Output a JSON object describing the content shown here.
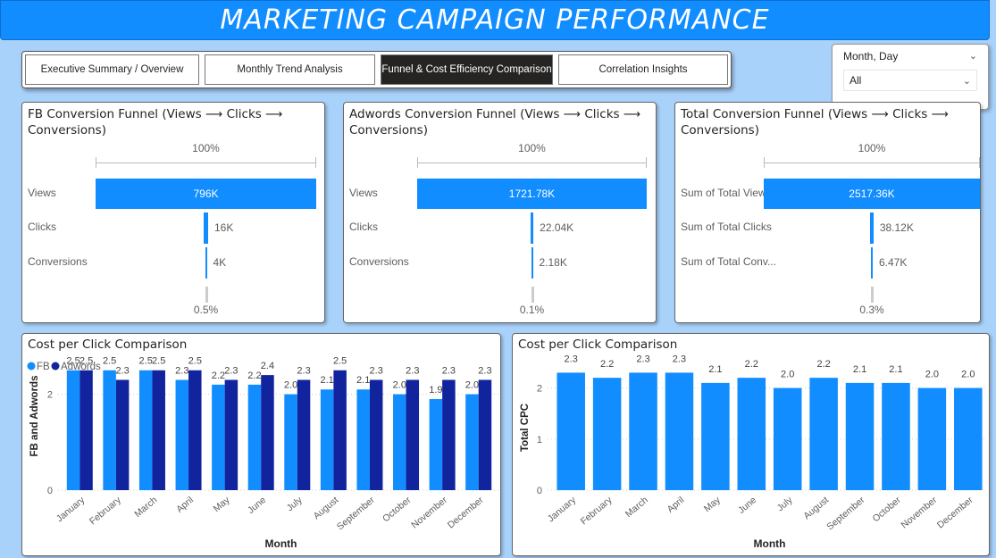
{
  "header": {
    "title": "MARKETING CAMPAIGN PERFORMANCE"
  },
  "tabs": [
    {
      "label": "Executive Summary / Overview",
      "active": false
    },
    {
      "label": "Monthly Trend Analysis",
      "active": false
    },
    {
      "label": "Funnel & Cost Efficiency Comparison",
      "active": true
    },
    {
      "label": "Correlation Insights",
      "active": false
    }
  ],
  "slicer": {
    "title": "Month, Day",
    "value": "All"
  },
  "funnels": [
    {
      "title": "FB Conversion Funnel (Views ⟶ Clicks ⟶ Conversions)",
      "top_pct": "100%",
      "bottom_pct": "0.5%",
      "stages": [
        {
          "label": "Views",
          "value": 796,
          "display": "796K"
        },
        {
          "label": "Clicks",
          "value": 16,
          "display": "16K"
        },
        {
          "label": "Conversions",
          "value": 4,
          "display": "4K"
        }
      ]
    },
    {
      "title": "Adwords Conversion Funnel (Views ⟶ Clicks ⟶ Conversions)",
      "top_pct": "100%",
      "bottom_pct": "0.1%",
      "stages": [
        {
          "label": "Views",
          "value": 1721.78,
          "display": "1721.78K"
        },
        {
          "label": "Clicks",
          "value": 22.04,
          "display": "22.04K"
        },
        {
          "label": "Conversions",
          "value": 2.18,
          "display": "2.18K"
        }
      ]
    },
    {
      "title": "Total Conversion Funnel (Views ⟶ Clicks ⟶ Conversions)",
      "top_pct": "100%",
      "bottom_pct": "0.3%",
      "stages": [
        {
          "label": "Sum of Total Views",
          "value": 2517.36,
          "display": "2517.36K"
        },
        {
          "label": "Sum of Total Clicks",
          "value": 38.12,
          "display": "38.12K"
        },
        {
          "label": "Sum of Total Conv...",
          "value": 6.47,
          "display": "6.47K"
        }
      ]
    }
  ],
  "chart_data": [
    {
      "type": "bar",
      "title": "Cost per Click Comparison",
      "xlabel": "Month",
      "ylabel": "FB and Adwords",
      "ylim": [
        0,
        2.7
      ],
      "yticks": [
        0,
        2
      ],
      "legend": "top-left",
      "grid": true,
      "categories": [
        "January",
        "February",
        "March",
        "April",
        "May",
        "June",
        "July",
        "August",
        "September",
        "October",
        "November",
        "December"
      ],
      "series": [
        {
          "name": "FB",
          "color": "#118DFF",
          "values": [
            2.5,
            2.5,
            2.5,
            2.3,
            2.2,
            2.2,
            2.0,
            2.1,
            2.1,
            2.0,
            1.9,
            2.0
          ]
        },
        {
          "name": "Adwords",
          "color": "#12239E",
          "values": [
            2.5,
            2.3,
            2.5,
            2.5,
            2.3,
            2.4,
            2.3,
            2.5,
            2.3,
            2.3,
            2.3,
            2.3
          ]
        }
      ]
    },
    {
      "type": "bar",
      "title": "Cost per Click Comparison",
      "xlabel": "Month",
      "ylabel": "Total CPC",
      "ylim": [
        0,
        2.5
      ],
      "yticks": [
        0,
        1,
        2
      ],
      "grid": true,
      "categories": [
        "January",
        "February",
        "March",
        "April",
        "May",
        "June",
        "July",
        "August",
        "September",
        "October",
        "November",
        "December"
      ],
      "series": [
        {
          "color": "#118DFF",
          "values": [
            2.3,
            2.2,
            2.3,
            2.3,
            2.1,
            2.2,
            2.0,
            2.2,
            2.1,
            2.1,
            2.0,
            2.0
          ]
        }
      ]
    }
  ]
}
